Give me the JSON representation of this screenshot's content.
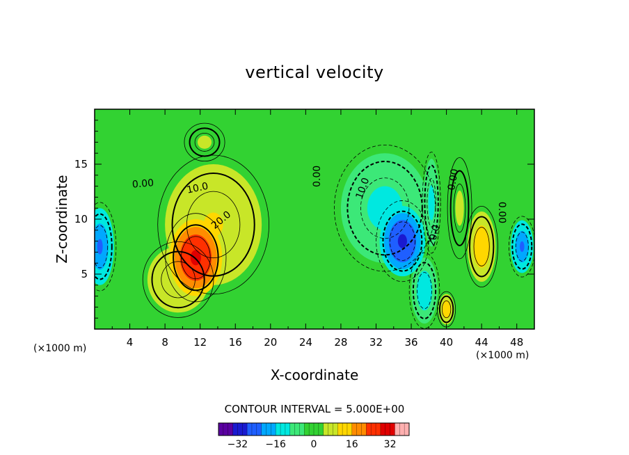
{
  "chart_data": {
    "type": "heatmap",
    "title": "vertical velocity",
    "xlabel": "X-coordinate",
    "ylabel": "Z-coordinate",
    "x_unit_left": "(×1000 m)",
    "x_unit_right": "(×1000 m)",
    "xlim": [
      0,
      50
    ],
    "ylim": [
      0,
      20
    ],
    "x_ticks": [
      4,
      8,
      12,
      16,
      20,
      24,
      28,
      32,
      36,
      40,
      44,
      48
    ],
    "y_ticks": [
      5,
      10,
      15
    ],
    "contour_interval_text": "CONTOUR INTERVAL = 5.000E+00",
    "colorbar": {
      "min": -40,
      "max": 40,
      "ticks": [
        -32,
        -16,
        0,
        16,
        32
      ],
      "colors": [
        "#5a00a0",
        "#1a1ad0",
        "#1f5fff",
        "#00a8ff",
        "#00e8e0",
        "#3ce878",
        "#32d232",
        "#c8e628",
        "#ffd700",
        "#ff8c00",
        "#ff3000",
        "#e00000",
        "#ffb0b0"
      ]
    },
    "contour_labels": [
      {
        "text": "0.00",
        "x": 5.5,
        "z": 13.2,
        "rotate": -5
      },
      {
        "text": "10.0",
        "x": 11.7,
        "z": 12.8,
        "rotate": -12
      },
      {
        "text": "20.0",
        "x": 14.4,
        "z": 9.9,
        "rotate": -40
      },
      {
        "text": "0.00",
        "x": 25.3,
        "z": 13.9,
        "rotate": -90
      },
      {
        "text": "10.0",
        "x": 30.5,
        "z": 12.8,
        "rotate": -70
      },
      {
        "text": "20.0",
        "x": 38.6,
        "z": 8.5,
        "rotate": -75
      },
      {
        "text": "0.00",
        "x": 40.8,
        "z": 13.6,
        "rotate": -80
      },
      {
        "text": "0.00",
        "x": 46.3,
        "z": 10.6,
        "rotate": 90
      }
    ],
    "cells": [
      {
        "x": 11.5,
        "z": 6.5,
        "value": 30,
        "sx": 3.0,
        "sz": 3.5
      },
      {
        "x": 13.5,
        "z": 9.5,
        "value": 10,
        "sx": 5.5,
        "sz": 5.5
      },
      {
        "x": 9.5,
        "z": 4.5,
        "value": 8,
        "sx": 3.5,
        "sz": 3.0
      },
      {
        "x": 35.0,
        "z": 8.0,
        "value": -30,
        "sx": 2.6,
        "sz": 3.2
      },
      {
        "x": 33.0,
        "z": 11.0,
        "value": -12,
        "sx": 5.0,
        "sz": 5.0
      },
      {
        "x": 37.5,
        "z": 3.5,
        "value": -14,
        "sx": 1.5,
        "sz": 3.0
      },
      {
        "x": 38.3,
        "z": 11.5,
        "value": -12,
        "sx": 0.9,
        "sz": 4.0
      },
      {
        "x": 0.6,
        "z": 7.5,
        "value": -22,
        "sx": 1.6,
        "sz": 3.5
      },
      {
        "x": 48.6,
        "z": 7.5,
        "value": -22,
        "sx": 1.3,
        "sz": 2.4
      },
      {
        "x": 44.0,
        "z": 7.5,
        "value": 14,
        "sx": 1.6,
        "sz": 3.2
      },
      {
        "x": 40.0,
        "z": 1.8,
        "value": 14,
        "sx": 0.9,
        "sz": 1.4
      },
      {
        "x": 41.5,
        "z": 11.0,
        "value": 4,
        "sx": 1.2,
        "sz": 4.0
      },
      {
        "x": 12.5,
        "z": 17.0,
        "value": 4,
        "sx": 2.0,
        "sz": 1.5
      }
    ]
  }
}
